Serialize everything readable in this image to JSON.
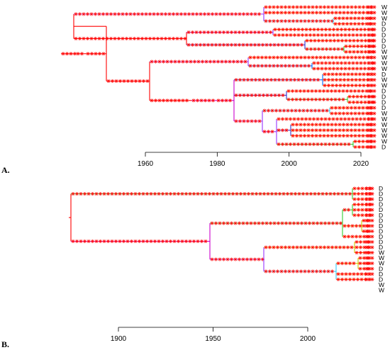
{
  "panels": [
    {
      "id": "A",
      "label": "A.",
      "axis_ticks": [
        {
          "year": 1960,
          "label": "1960"
        },
        {
          "year": 1980,
          "label": "1980"
        },
        {
          "year": 2000,
          "label": "2000"
        },
        {
          "year": 2020,
          "label": "2020"
        }
      ],
      "tip_labels": [
        "W",
        "W",
        "W",
        "D",
        "D",
        "D",
        "D",
        "D",
        "W",
        "W",
        "W",
        "W",
        "D",
        "W",
        "W",
        "D",
        "D",
        "D",
        "D",
        "W",
        "W",
        "W",
        "W",
        "W",
        "W",
        "D"
      ]
    },
    {
      "id": "B",
      "label": "B.",
      "axis_ticks": [
        {
          "year": 1900,
          "label": "1900"
        },
        {
          "year": 1950,
          "label": "1950"
        },
        {
          "year": 2000,
          "label": "2000"
        }
      ],
      "tip_labels": [
        "D",
        "D",
        "D",
        "D",
        "D",
        "D",
        "D",
        "D",
        "D",
        "D",
        "D",
        "D",
        "W",
        "W",
        "W",
        "D",
        "D",
        "D",
        "W",
        "W"
      ]
    }
  ],
  "colors": {
    "deep": "#ff0000",
    "mid1": "#cc00cc",
    "mid2": "#9933ff",
    "mid3": "#3333cc",
    "mid4": "#0066ff",
    "recent1": "#33ccff",
    "recent2": "#33cc33",
    "recent3": "#cccc00",
    "recent4": "#ff9900",
    "marker": "#ff0000"
  }
}
